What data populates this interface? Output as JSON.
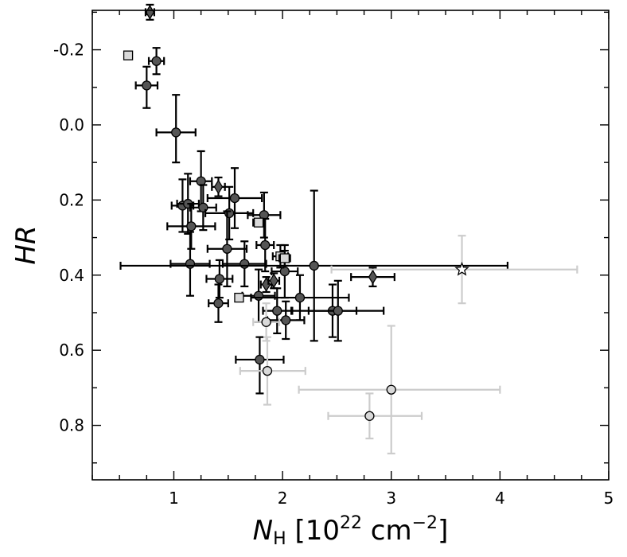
{
  "chart_data": {
    "type": "scatter",
    "title": "",
    "xlabel": {
      "base": "N",
      "sub": "H",
      "rest": " [10",
      "sup1": "22",
      "unit": " cm",
      "sup2": "−2",
      "close": "]"
    },
    "ylabel": "HR",
    "xlim": [
      0.25,
      5.0
    ],
    "ylim": [
      0.945,
      -0.305
    ],
    "y_inverted": true,
    "x_ticks": [
      1,
      2,
      3,
      4,
      5
    ],
    "x_tick_labels": [
      "1",
      "2",
      "3",
      "4",
      "5"
    ],
    "y_ticks": [
      -0.2,
      0.0,
      0.2,
      0.4,
      0.6,
      0.8
    ],
    "y_tick_labels": [
      "-0.2",
      "0.0",
      "0.2",
      "0.4",
      "0.6",
      "0.8"
    ],
    "grid": false,
    "colors": {
      "dark_fill": "#555555",
      "light_fill": "#d9d9d9",
      "white_fill": "#ffffff",
      "dark_err": "#000000",
      "light_err": "#cccccc"
    },
    "series": [
      {
        "marker": "circle",
        "fill": "dark",
        "points": [
          {
            "x": 0.75,
            "y": -0.105,
            "xerr": [
              0.1,
              0.1
            ],
            "yerr": [
              0.05,
              0.06
            ]
          },
          {
            "x": 0.84,
            "y": -0.17,
            "xerr": [
              0.07,
              0.07
            ],
            "yerr": [
              0.035,
              0.035
            ]
          },
          {
            "x": 1.02,
            "y": 0.02,
            "xerr": [
              0.18,
              0.18
            ],
            "yerr": [
              0.1,
              0.08
            ]
          },
          {
            "x": 1.25,
            "y": 0.15,
            "xerr": [
              0.1,
              0.1
            ],
            "yerr": [
              0.08,
              0.08
            ]
          },
          {
            "x": 1.08,
            "y": 0.215,
            "xerr": [
              0.1,
              0.1
            ],
            "yerr": [
              0.07,
              0.07
            ]
          },
          {
            "x": 1.13,
            "y": 0.21,
            "xerr": [
              0.1,
              0.1
            ],
            "yerr": [
              0.08,
              0.08
            ]
          },
          {
            "x": 1.27,
            "y": 0.22,
            "xerr": [
              0.12,
              0.12
            ],
            "yerr": [
              0.06,
              0.06
            ]
          },
          {
            "x": 1.16,
            "y": 0.27,
            "xerr": [
              0.22,
              0.22
            ],
            "yerr": [
              0.06,
              0.06
            ]
          },
          {
            "x": 1.51,
            "y": 0.235,
            "xerr": [
              0.22,
              0.22
            ],
            "yerr": [
              0.07,
              0.07
            ]
          },
          {
            "x": 1.56,
            "y": 0.195,
            "xerr": [
              0.25,
              0.25
            ],
            "yerr": [
              0.08,
              0.08
            ]
          },
          {
            "x": 1.83,
            "y": 0.24,
            "xerr": [
              0.15,
              0.15
            ],
            "yerr": [
              0.06,
              0.06
            ]
          },
          {
            "x": 1.49,
            "y": 0.33,
            "xerr": [
              0.18,
              0.18
            ],
            "yerr": [
              0.1,
              0.1
            ]
          },
          {
            "x": 1.84,
            "y": 0.32,
            "xerr": [
              0.08,
              0.08
            ],
            "yerr": [
              0.07,
              0.07
            ]
          },
          {
            "x": 1.15,
            "y": 0.37,
            "xerr": [
              0.18,
              0.18
            ],
            "yerr": [
              0.085,
              0.085
            ]
          },
          {
            "x": 1.65,
            "y": 0.37,
            "xerr": [
              0.2,
              0.2
            ],
            "yerr": [
              0.06,
              0.06
            ]
          },
          {
            "x": 1.42,
            "y": 0.41,
            "xerr": [
              0.12,
              0.12
            ],
            "yerr": [
              0.05,
              0.05
            ]
          },
          {
            "x": 2.02,
            "y": 0.39,
            "xerr": [
              0.12,
              0.12
            ],
            "yerr": [
              0.07,
              0.07
            ]
          },
          {
            "x": 2.29,
            "y": 0.375,
            "xerr": [
              1.78,
              1.78
            ],
            "yerr": [
              0.2,
              0.2
            ]
          },
          {
            "x": 1.78,
            "y": 0.455,
            "xerr": [
              0.15,
              0.15
            ],
            "yerr": [
              0.07,
              0.07
            ]
          },
          {
            "x": 1.41,
            "y": 0.475,
            "xerr": [
              0.09,
              0.09
            ],
            "yerr": [
              0.05,
              0.05
            ]
          },
          {
            "x": 2.16,
            "y": 0.46,
            "xerr": [
              0.45,
              0.45
            ],
            "yerr": [
              0.06,
              0.06
            ]
          },
          {
            "x": 1.95,
            "y": 0.495,
            "xerr": [
              0.13,
              0.13
            ],
            "yerr": [
              0.06,
              0.06
            ]
          },
          {
            "x": 2.46,
            "y": 0.495,
            "xerr": [
              0.22,
              0.22
            ],
            "yerr": [
              0.07,
              0.07
            ]
          },
          {
            "x": 2.51,
            "y": 0.495,
            "xerr": [
              0.42,
              0.42
            ],
            "yerr": [
              0.08,
              0.08
            ]
          },
          {
            "x": 2.03,
            "y": 0.52,
            "xerr": [
              0.17,
              0.17
            ],
            "yerr": [
              0.05,
              0.05
            ]
          },
          {
            "x": 1.79,
            "y": 0.625,
            "xerr": [
              0.22,
              0.22
            ],
            "yerr": [
              0.06,
              0.09
            ]
          }
        ]
      },
      {
        "marker": "diamond",
        "fill": "dark",
        "points": [
          {
            "x": 0.78,
            "y": -0.3,
            "xerr": [
              0.04,
              0.04
            ],
            "yerr": [
              0.02,
              0.02
            ]
          },
          {
            "x": 1.41,
            "y": 0.165,
            "xerr": [
              0.06,
              0.06
            ],
            "yerr": [
              0.025,
              0.025
            ]
          },
          {
            "x": 1.85,
            "y": 0.425,
            "xerr": [
              0.05,
              0.05
            ],
            "yerr": [
              0.02,
              0.02
            ]
          },
          {
            "x": 1.92,
            "y": 0.415,
            "xerr": [
              0.05,
              0.05
            ],
            "yerr": [
              0.02,
              0.02
            ]
          },
          {
            "x": 2.83,
            "y": 0.405,
            "xerr": [
              0.2,
              0.2
            ],
            "yerr": [
              0.025,
              0.025
            ]
          }
        ]
      },
      {
        "marker": "square",
        "fill": "light",
        "points": [
          {
            "x": 0.58,
            "y": -0.185,
            "xerr": [
              0,
              0
            ],
            "yerr": [
              0,
              0
            ]
          },
          {
            "x": 1.78,
            "y": 0.26,
            "xerr": [
              0.05,
              0.05
            ],
            "yerr": [
              0,
              0
            ]
          },
          {
            "x": 1.6,
            "y": 0.46,
            "xerr": [
              0,
              0
            ],
            "yerr": [
              0,
              0
            ]
          },
          {
            "x": 1.98,
            "y": 0.35,
            "xerr": [
              0.07,
              0.07
            ],
            "yerr": [
              0.03,
              0.03
            ]
          },
          {
            "x": 2.02,
            "y": 0.355,
            "xerr": [
              0.05,
              0.05
            ],
            "yerr": [
              0.02,
              0.02
            ]
          }
        ]
      },
      {
        "marker": "circle",
        "fill": "light",
        "points": [
          {
            "x": 1.85,
            "y": 0.525,
            "xerr": [
              0.12,
              0.12
            ],
            "yerr": [
              0.05,
              0.05
            ]
          },
          {
            "x": 1.86,
            "y": 0.655,
            "xerr": [
              0.25,
              0.35
            ],
            "yerr": [
              0.09,
              0.09
            ]
          },
          {
            "x": 3.0,
            "y": 0.705,
            "xerr": [
              0.85,
              1.0
            ],
            "yerr": [
              0.17,
              0.17
            ]
          },
          {
            "x": 2.8,
            "y": 0.775,
            "xerr": [
              0.38,
              0.48
            ],
            "yerr": [
              0.06,
              0.06
            ]
          }
        ]
      },
      {
        "marker": "star",
        "fill": "white",
        "err": "light",
        "points": [
          {
            "x": 3.65,
            "y": 0.385,
            "xerr": [
              1.2,
              1.06
            ],
            "yerr": [
              0.09,
              0.09
            ]
          }
        ]
      }
    ]
  }
}
